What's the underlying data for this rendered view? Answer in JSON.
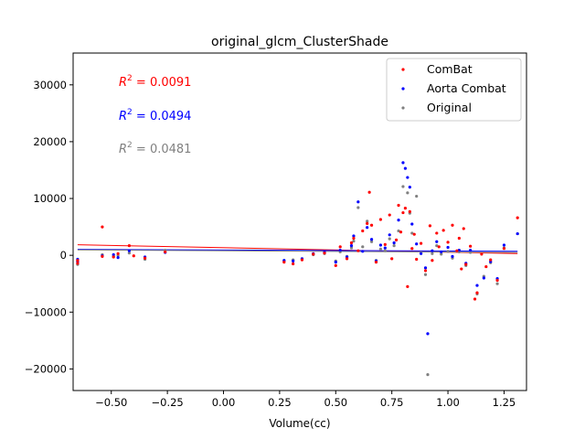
{
  "chart_data": {
    "type": "scatter",
    "title": "original_glcm_ClusterShade",
    "xlabel": "Volume(cc)",
    "ylabel": "",
    "xlim": [
      -0.67,
      1.35
    ],
    "ylim": [
      -23800,
      35600
    ],
    "xticks": [
      -0.5,
      -0.25,
      0.0,
      0.25,
      0.5,
      0.75,
      1.0,
      1.25
    ],
    "xtick_labels": [
      "−0.50",
      "−0.25",
      "0.00",
      "0.25",
      "0.50",
      "0.75",
      "1.00",
      "1.25"
    ],
    "yticks": [
      -20000,
      -10000,
      0,
      10000,
      20000,
      30000
    ],
    "ytick_labels": [
      "−20000",
      "−10000",
      "0",
      "10000",
      "20000",
      "30000"
    ],
    "grid": false,
    "legend": {
      "placement": "top-right",
      "entries": [
        "ComBat",
        "Aorta Combat",
        "Original"
      ]
    },
    "r2_annotations": [
      {
        "label": "R",
        "exp": "2",
        "value": " = 0.0091",
        "color": "#ff0000"
      },
      {
        "label": "R",
        "exp": "2",
        "value": " = 0.0494",
        "color": "#0000ff"
      },
      {
        "label": "R",
        "exp": "2",
        "value": " = 0.0481",
        "color": "#808080"
      }
    ],
    "series": [
      {
        "name": "ComBat",
        "color": "#ff0000",
        "fit": [
          [
            -0.65,
            1850
          ],
          [
            1.31,
            300
          ]
        ],
        "points": [
          [
            -0.65,
            -1400
          ],
          [
            -0.65,
            -900
          ],
          [
            -0.54,
            5000
          ],
          [
            -0.54,
            -200
          ],
          [
            -0.49,
            -300
          ],
          [
            -0.47,
            300
          ],
          [
            -0.42,
            1700
          ],
          [
            -0.4,
            -100
          ],
          [
            -0.35,
            -500
          ],
          [
            -0.26,
            600
          ],
          [
            0.27,
            -1200
          ],
          [
            0.31,
            -1500
          ],
          [
            0.35,
            -800
          ],
          [
            0.4,
            200
          ],
          [
            0.45,
            400
          ],
          [
            0.5,
            -1800
          ],
          [
            0.52,
            1500
          ],
          [
            0.55,
            -600
          ],
          [
            0.57,
            2200
          ],
          [
            0.58,
            3000
          ],
          [
            0.6,
            800
          ],
          [
            0.62,
            4300
          ],
          [
            0.64,
            5600
          ],
          [
            0.65,
            11100
          ],
          [
            0.66,
            5300
          ],
          [
            0.68,
            -1200
          ],
          [
            0.7,
            6300
          ],
          [
            0.72,
            1900
          ],
          [
            0.74,
            7100
          ],
          [
            0.75,
            -600
          ],
          [
            0.77,
            2700
          ],
          [
            0.78,
            8800
          ],
          [
            0.79,
            4100
          ],
          [
            0.8,
            7500
          ],
          [
            0.81,
            8300
          ],
          [
            0.82,
            -5500
          ],
          [
            0.83,
            7700
          ],
          [
            0.84,
            1200
          ],
          [
            0.85,
            3700
          ],
          [
            0.86,
            -700
          ],
          [
            0.88,
            2100
          ],
          [
            0.9,
            -2700
          ],
          [
            0.92,
            5200
          ],
          [
            0.93,
            -900
          ],
          [
            0.95,
            3900
          ],
          [
            0.96,
            1500
          ],
          [
            0.98,
            4400
          ],
          [
            1.0,
            2300
          ],
          [
            1.02,
            5300
          ],
          [
            1.04,
            800
          ],
          [
            1.05,
            3000
          ],
          [
            1.06,
            -2400
          ],
          [
            1.07,
            4700
          ],
          [
            1.08,
            -1600
          ],
          [
            1.1,
            1600
          ],
          [
            1.12,
            -7700
          ],
          [
            1.13,
            -6600
          ],
          [
            1.15,
            200
          ],
          [
            1.17,
            -2000
          ],
          [
            1.19,
            -800
          ],
          [
            1.22,
            -4400
          ],
          [
            1.25,
            1200
          ],
          [
            1.31,
            6600
          ]
        ]
      },
      {
        "name": "Aorta Combat",
        "color": "#0000ff",
        "fit": [
          [
            -0.65,
            1050
          ],
          [
            1.31,
            700
          ]
        ],
        "points": [
          [
            -0.65,
            -1100
          ],
          [
            -0.65,
            -700
          ],
          [
            -0.54,
            -100
          ],
          [
            -0.49,
            100
          ],
          [
            -0.47,
            -400
          ],
          [
            -0.42,
            800
          ],
          [
            -0.35,
            -300
          ],
          [
            -0.26,
            500
          ],
          [
            0.27,
            -900
          ],
          [
            0.31,
            -1000
          ],
          [
            0.35,
            -600
          ],
          [
            0.4,
            300
          ],
          [
            0.45,
            600
          ],
          [
            0.5,
            -1200
          ],
          [
            0.52,
            900
          ],
          [
            0.55,
            -300
          ],
          [
            0.57,
            1700
          ],
          [
            0.58,
            3400
          ],
          [
            0.6,
            9400
          ],
          [
            0.62,
            700
          ],
          [
            0.64,
            4900
          ],
          [
            0.66,
            2800
          ],
          [
            0.68,
            -1000
          ],
          [
            0.7,
            1800
          ],
          [
            0.72,
            1300
          ],
          [
            0.74,
            3600
          ],
          [
            0.76,
            2200
          ],
          [
            0.78,
            6200
          ],
          [
            0.8,
            16300
          ],
          [
            0.81,
            15300
          ],
          [
            0.82,
            13700
          ],
          [
            0.83,
            12000
          ],
          [
            0.84,
            5500
          ],
          [
            0.86,
            2000
          ],
          [
            0.88,
            300
          ],
          [
            0.9,
            -2200
          ],
          [
            0.91,
            -13800
          ],
          [
            0.93,
            800
          ],
          [
            0.95,
            2400
          ],
          [
            0.97,
            600
          ],
          [
            1.0,
            1400
          ],
          [
            1.02,
            -200
          ],
          [
            1.05,
            900
          ],
          [
            1.08,
            -1400
          ],
          [
            1.1,
            900
          ],
          [
            1.13,
            -5300
          ],
          [
            1.16,
            -4000
          ],
          [
            1.19,
            -1100
          ],
          [
            1.22,
            -4100
          ],
          [
            1.25,
            1800
          ],
          [
            1.31,
            3800
          ]
        ]
      },
      {
        "name": "Original",
        "color": "#808080",
        "fit": [
          [
            -0.65,
            950
          ],
          [
            1.31,
            500
          ]
        ],
        "points": [
          [
            -0.65,
            -1000
          ],
          [
            -0.65,
            -1600
          ],
          [
            -0.54,
            100
          ],
          [
            -0.49,
            -200
          ],
          [
            -0.47,
            0
          ],
          [
            -0.42,
            400
          ],
          [
            -0.35,
            -700
          ],
          [
            -0.26,
            900
          ],
          [
            0.27,
            -1000
          ],
          [
            0.31,
            -800
          ],
          [
            0.35,
            -700
          ],
          [
            0.4,
            100
          ],
          [
            0.45,
            300
          ],
          [
            0.5,
            -1000
          ],
          [
            0.52,
            600
          ],
          [
            0.55,
            -200
          ],
          [
            0.57,
            1300
          ],
          [
            0.58,
            2500
          ],
          [
            0.6,
            8400
          ],
          [
            0.62,
            1500
          ],
          [
            0.64,
            6000
          ],
          [
            0.66,
            2400
          ],
          [
            0.68,
            -900
          ],
          [
            0.7,
            1100
          ],
          [
            0.72,
            800
          ],
          [
            0.74,
            2900
          ],
          [
            0.76,
            1700
          ],
          [
            0.78,
            4300
          ],
          [
            0.8,
            12100
          ],
          [
            0.82,
            11000
          ],
          [
            0.83,
            7400
          ],
          [
            0.84,
            3900
          ],
          [
            0.86,
            10400
          ],
          [
            0.88,
            500
          ],
          [
            0.9,
            -3400
          ],
          [
            0.91,
            -21000
          ],
          [
            0.93,
            300
          ],
          [
            0.95,
            1700
          ],
          [
            0.97,
            200
          ],
          [
            1.0,
            700
          ],
          [
            1.02,
            -500
          ],
          [
            1.05,
            600
          ],
          [
            1.08,
            -1800
          ],
          [
            1.1,
            500
          ],
          [
            1.13,
            -6800
          ],
          [
            1.16,
            -3700
          ],
          [
            1.19,
            -1300
          ],
          [
            1.22,
            -5000
          ],
          [
            1.25,
            1300
          ],
          [
            1.31,
            3800
          ]
        ]
      }
    ]
  }
}
